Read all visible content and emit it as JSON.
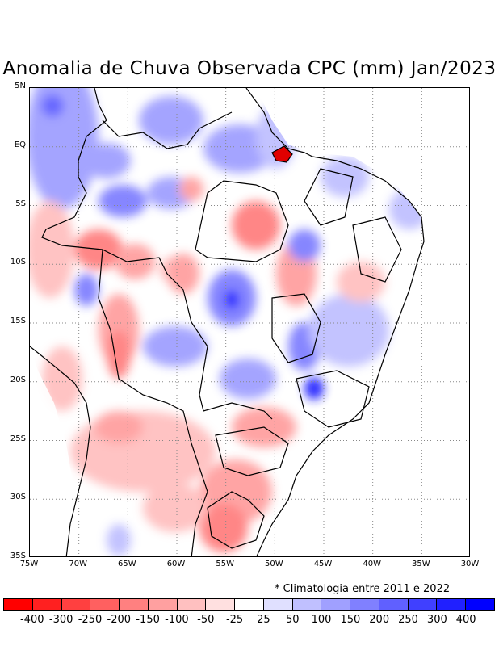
{
  "title": "Anomalia de Chuva Observada CPC (mm) Jan/2023",
  "note": "* Climatologia entre 2011 e 2022",
  "map": {
    "lat_labels": [
      "5N",
      "EQ",
      "5S",
      "10S",
      "15S",
      "20S",
      "25S",
      "30S",
      "35S"
    ],
    "lon_labels": [
      "75W",
      "70W",
      "65W",
      "60W",
      "55W",
      "50W",
      "45W",
      "40W",
      "35W",
      "30W"
    ],
    "lat_range": [
      -35,
      5
    ],
    "lon_range": [
      -75,
      -30
    ],
    "grid_style": "dotted"
  },
  "colorbar": {
    "colors": [
      "#ff0000",
      "#ff2020",
      "#ff4040",
      "#ff6060",
      "#ff8080",
      "#ffa0a0",
      "#ffc0c0",
      "#ffe0e0",
      "#ffffff",
      "#e0e0ff",
      "#c0c0ff",
      "#a0a0ff",
      "#8080ff",
      "#6060ff",
      "#4040ff",
      "#2020ff",
      "#0000ff"
    ],
    "labels": [
      "-400",
      "-300",
      "-250",
      "-200",
      "-150",
      "-100",
      "-50",
      "-25",
      "25",
      "50",
      "100",
      "150",
      "200",
      "250",
      "300",
      "400"
    ]
  }
}
